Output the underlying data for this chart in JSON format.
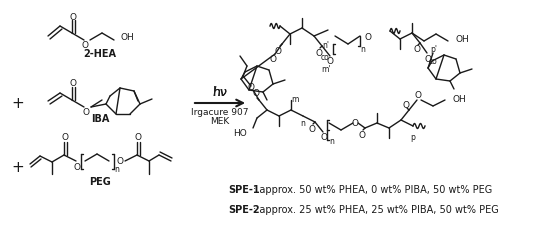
{
  "figsize": [
    5.5,
    2.32
  ],
  "dpi": 100,
  "bg_color": "#ffffff",
  "label_2hea": "2-HEA",
  "label_iba": "IBA",
  "label_peg": "PEG",
  "hv_text": "hν",
  "condition1": "Irgacure 907",
  "condition2": "MEK",
  "spe1_label": "SPE-1",
  "spe1_text": ": approx. 50 wt% PHEA, 0 wt% PIBA, 50 wt% PEG",
  "spe2_label": "SPE-2",
  "spe2_text": ": approx. 25 wt% PHEA, 25 wt% PIBA, 50 wt% PEG",
  "dark": "#1a1a1a"
}
